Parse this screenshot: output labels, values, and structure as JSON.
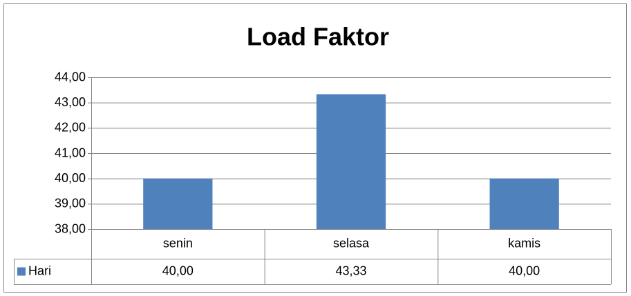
{
  "chart_data": {
    "type": "bar",
    "title": "Load Faktor",
    "categories": [
      "senin",
      "selasa",
      "kamis"
    ],
    "series": [
      {
        "name": "Hari",
        "color": "#4f81bd",
        "values": [
          40,
          43.33,
          40
        ],
        "value_labels": [
          "40,00",
          "43,33",
          "40,00"
        ]
      }
    ],
    "ylim": [
      38,
      44
    ],
    "yticks": [
      {
        "value": 38,
        "label": "38,00"
      },
      {
        "value": 39,
        "label": "39,00"
      },
      {
        "value": 40,
        "label": "40,00"
      },
      {
        "value": 41,
        "label": "41,00"
      },
      {
        "value": 42,
        "label": "42,00"
      },
      {
        "value": 43,
        "label": "43,00"
      },
      {
        "value": 44,
        "label": "44,00"
      }
    ],
    "grid": true
  }
}
